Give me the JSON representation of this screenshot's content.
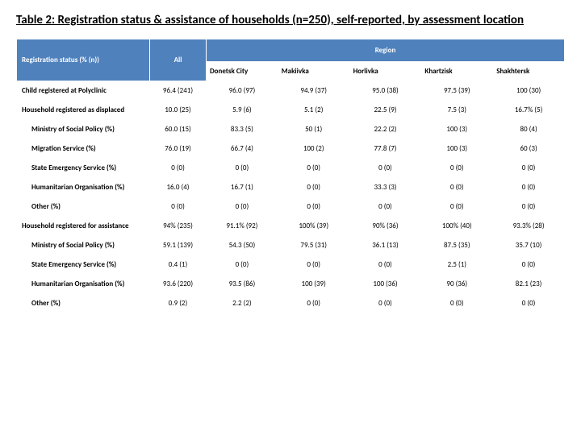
{
  "title": "Table 2: Registration status & assistance of households (n=250), self-reported, by assessment location",
  "header": {
    "left": "Registration status (% (n))",
    "all": "All",
    "region": "Region",
    "cols": [
      "Donetsk City",
      "Makiivka",
      "Horlivka",
      "Khartzisk",
      "Shakhtersk"
    ]
  },
  "rows": [
    {
      "label": "Child registered at Polyclinic",
      "indent": false,
      "vals": [
        "96.4 (241)",
        "96.0 (97)",
        "94.9 (37)",
        "95.0 (38)",
        "97.5 (39)",
        "100 (30)"
      ]
    },
    {
      "label": "Household registered as displaced",
      "indent": false,
      "vals": [
        "10.0 (25)",
        "5.9 (6)",
        "5.1 (2)",
        "22.5 (9)",
        "7.5 (3)",
        "16.7% (5)"
      ]
    },
    {
      "label": "Ministry of Social Policy (%)",
      "indent": true,
      "vals": [
        "60.0 (15)",
        "83.3 (5)",
        "50 (1)",
        "22.2 (2)",
        "100 (3)",
        "80 (4)"
      ]
    },
    {
      "label": "Migration Service (%)",
      "indent": true,
      "vals": [
        "76.0 (19)",
        "66.7 (4)",
        "100 (2)",
        "77.8 (7)",
        "100 (3)",
        "60 (3)"
      ]
    },
    {
      "label": "State Emergency Service (%)",
      "indent": true,
      "vals": [
        "0 (0)",
        "0 (0)",
        "0 (0)",
        "0 (0)",
        "0 (0)",
        "0 (0)"
      ]
    },
    {
      "label": "Humanitarian Organisation (%)",
      "indent": true,
      "vals": [
        "16.0 (4)",
        "16.7 (1)",
        "0 (0)",
        "33.3 (3)",
        "0 (0)",
        "0 (0)"
      ]
    },
    {
      "label": "Other (%)",
      "indent": true,
      "vals": [
        "0 (0)",
        "0 (0)",
        "0 (0)",
        "0 (0)",
        "0 (0)",
        "0 (0)"
      ]
    },
    {
      "label": "Household registered for assistance",
      "indent": false,
      "vals": [
        "94% (235)",
        "91.1% (92)",
        "100% (39)",
        "90% (36)",
        "100% (40)",
        "93.3% (28)"
      ]
    },
    {
      "label": "Ministry of Social Policy (%)",
      "indent": true,
      "vals": [
        "59.1 (139)",
        "54.3 (50)",
        "79.5 (31)",
        "36.1 (13)",
        "87.5 (35)",
        "35.7 (10)"
      ]
    },
    {
      "label": "State Emergency Service (%)",
      "indent": true,
      "vals": [
        "0.4 (1)",
        "0 (0)",
        "0 (0)",
        "0 (0)",
        "2.5 (1)",
        "0 (0)"
      ]
    },
    {
      "label": "Humanitarian Organisation (%)",
      "indent": true,
      "vals": [
        "93.6 (220)",
        "93.5 (86)",
        "100 (39)",
        "100 (36)",
        "90 (36)",
        "82.1 (23)"
      ]
    },
    {
      "label": "Other (%)",
      "indent": true,
      "vals": [
        "0.9 (2)",
        "2.2 (2)",
        "0 (0)",
        "0 (0)",
        "0 (0)",
        "0 (0)"
      ]
    }
  ],
  "colors": {
    "header_bg": "#4f81bd",
    "header_fg": "#ffffff",
    "border": "#ffffff"
  }
}
